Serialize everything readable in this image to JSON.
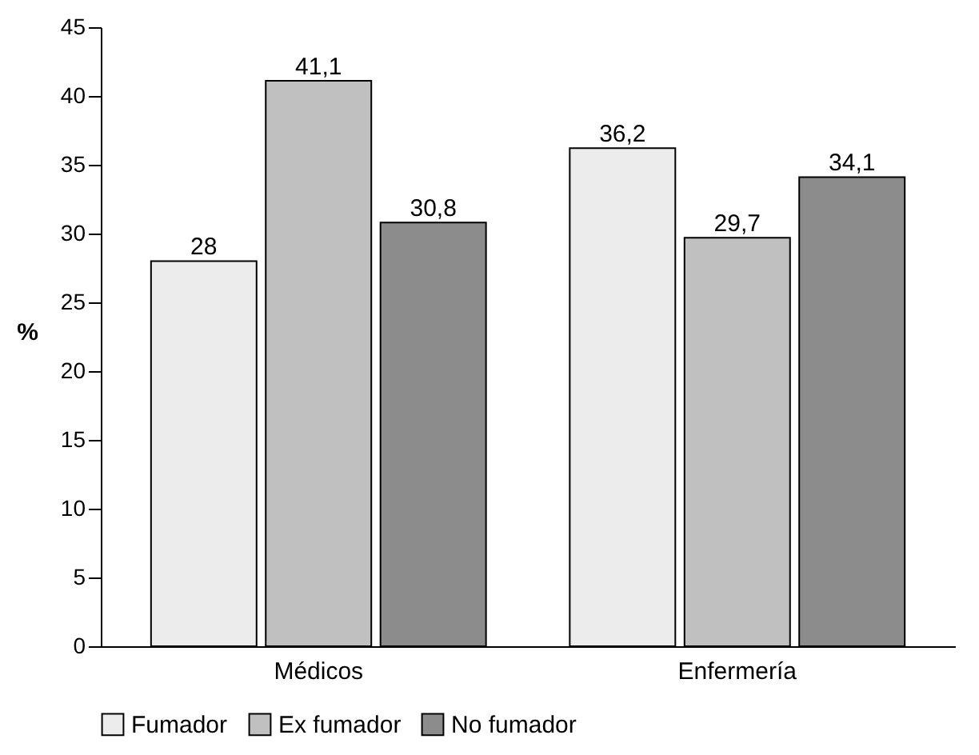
{
  "chart_data": {
    "type": "bar",
    "ylabel": "%",
    "categories": [
      "Médicos",
      "Enfermería"
    ],
    "series": [
      {
        "name": "Fumador",
        "color": "#ececec",
        "values": [
          28,
          36.2
        ],
        "value_labels": [
          "28",
          "36,2"
        ]
      },
      {
        "name": "Ex fumador",
        "color": "#c0c0c0",
        "values": [
          41.1,
          29.7
        ],
        "value_labels": [
          "41,1",
          "29,7"
        ]
      },
      {
        "name": "No fumador",
        "color": "#8c8c8c",
        "values": [
          30.8,
          34.1
        ],
        "value_labels": [
          "30,8",
          "34,1"
        ]
      }
    ],
    "ylim": [
      0,
      45
    ],
    "yticks": [
      0,
      5,
      10,
      15,
      20,
      25,
      30,
      35,
      40,
      45
    ],
    "grid": false,
    "legend": "bottom"
  }
}
